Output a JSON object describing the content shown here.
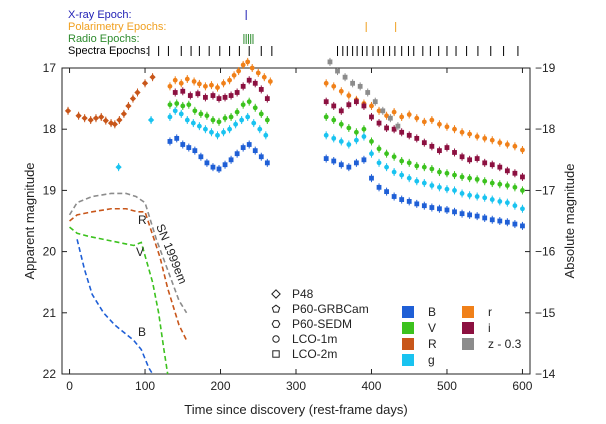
{
  "chart_data": {
    "type": "scatter",
    "xlabel": "Time since discovery (rest-frame days)",
    "ylabel": "Apparent magnitude",
    "ylabel_right": "Absolute magnitude",
    "xlim": [
      -10,
      610
    ],
    "ylim": [
      17.0,
      22.0
    ],
    "ylim_right": [
      -19.0,
      -14.0
    ],
    "x_ticks": [
      0,
      100,
      200,
      300,
      400,
      500,
      600
    ],
    "y_ticks": [
      17,
      18,
      19,
      20,
      21,
      22
    ],
    "y_ticks_right": [
      -19,
      -18,
      -17,
      -16,
      -15,
      -14
    ],
    "epochs": [
      {
        "label": "X-ray Epoch:",
        "color": "#1f1fb4",
        "days": [
          234
        ]
      },
      {
        "label": "Polarimetry Epochs:",
        "color": "#f0a020",
        "days": [
          393,
          432
        ]
      },
      {
        "label": "Radio Epochs:",
        "color": "#2e8b2e",
        "days": [
          231,
          234,
          237,
          240,
          243
        ]
      },
      {
        "label": "Spectra Epochs:",
        "color": "#000000",
        "days": [
          105,
          118,
          131,
          148,
          161,
          172,
          185,
          199,
          212,
          225,
          238,
          254,
          268,
          355,
          362,
          368,
          375,
          381,
          388,
          394,
          402,
          409,
          416,
          424,
          431,
          440,
          449,
          456,
          468,
          478,
          489,
          500,
          512,
          526,
          541,
          558,
          575,
          594
        ]
      }
    ],
    "telescope_legend": [
      {
        "label": "P48",
        "marker": "diamond"
      },
      {
        "label": "P60-GRBCam",
        "marker": "pentagon"
      },
      {
        "label": "P60-SEDM",
        "marker": "hexagon"
      },
      {
        "label": "LCO-1m",
        "marker": "circle"
      },
      {
        "label": "LCO-2m",
        "marker": "square"
      }
    ],
    "filter_legend": [
      {
        "label": "B",
        "color": "#1f5fd6"
      },
      {
        "label": "V",
        "color": "#3cc21e"
      },
      {
        "label": "R",
        "color": "#c8561a"
      },
      {
        "label": "g",
        "color": "#19c3f0"
      },
      {
        "label": "r",
        "color": "#f08019"
      },
      {
        "label": "i",
        "color": "#8c1040"
      },
      {
        "label": "z - 0.3",
        "color": "#8c8c8c"
      }
    ],
    "series": [
      {
        "name": "R",
        "color": "#c8561a",
        "marker": "diamond",
        "x": [
          -2,
          12,
          20,
          28,
          35,
          42,
          48,
          55,
          60,
          66,
          72,
          78,
          84,
          90,
          100,
          110
        ],
        "y": [
          17.7,
          17.78,
          17.82,
          17.85,
          17.82,
          17.8,
          17.86,
          17.9,
          17.92,
          17.85,
          17.75,
          17.62,
          17.5,
          17.4,
          17.25,
          17.15
        ]
      },
      {
        "name": "g",
        "color": "#19c3f0",
        "marker": "diamond",
        "x": [
          65,
          108
        ],
        "y": [
          18.62,
          17.85
        ]
      },
      {
        "name": "r",
        "color": "#f08019",
        "marker": "circle",
        "x": [
          133,
          140,
          148,
          156,
          165,
          172,
          180,
          188,
          196,
          204,
          212,
          218,
          224,
          230,
          236,
          242,
          250,
          258,
          266,
          340,
          350,
          360,
          370,
          380,
          390,
          400,
          410,
          420,
          430,
          440,
          450,
          460,
          470,
          480,
          490,
          500,
          510,
          520,
          530,
          540,
          550,
          560,
          570,
          580,
          590,
          600
        ],
        "y": [
          17.3,
          17.2,
          17.25,
          17.18,
          17.22,
          17.26,
          17.3,
          17.28,
          17.32,
          17.25,
          17.2,
          17.12,
          17.05,
          16.95,
          16.9,
          17.0,
          17.08,
          17.15,
          17.22,
          17.25,
          17.3,
          17.38,
          17.45,
          17.52,
          17.58,
          17.62,
          17.7,
          17.78,
          17.72,
          17.8,
          17.76,
          17.82,
          17.88,
          17.85,
          17.92,
          17.96,
          18.0,
          18.05,
          18.08,
          18.12,
          18.15,
          18.18,
          18.22,
          18.25,
          18.28,
          18.34
        ]
      },
      {
        "name": "i",
        "color": "#8c1040",
        "marker": "square",
        "x": [
          140,
          150,
          160,
          170,
          180,
          190,
          198,
          206,
          214,
          222,
          230,
          238,
          246,
          254,
          262,
          340,
          350,
          360,
          370,
          380,
          390,
          400,
          410,
          420,
          430,
          440,
          450,
          460,
          470,
          480,
          490,
          500,
          510,
          520,
          530,
          540,
          550,
          560,
          570,
          580,
          590,
          600
        ],
        "y": [
          17.4,
          17.38,
          17.45,
          17.42,
          17.48,
          17.45,
          17.5,
          17.48,
          17.45,
          17.4,
          17.3,
          17.2,
          17.25,
          17.35,
          17.5,
          17.55,
          17.62,
          17.7,
          17.6,
          17.55,
          17.62,
          17.8,
          17.9,
          17.98,
          18.0,
          18.05,
          18.1,
          18.15,
          18.22,
          18.28,
          18.35,
          18.3,
          18.38,
          18.45,
          18.5,
          18.48,
          18.55,
          18.58,
          18.62,
          18.68,
          18.72,
          18.78
        ]
      },
      {
        "name": "V",
        "color": "#3cc21e",
        "marker": "circle",
        "x": [
          133,
          142,
          150,
          158,
          166,
          174,
          182,
          190,
          198,
          206,
          214,
          222,
          230,
          238,
          246,
          254,
          262,
          340,
          350,
          360,
          370,
          380,
          390,
          400,
          410,
          420,
          430,
          440,
          450,
          460,
          470,
          480,
          490,
          500,
          510,
          520,
          530,
          540,
          550,
          560,
          570,
          580,
          590,
          600
        ],
        "y": [
          17.6,
          17.58,
          17.62,
          17.6,
          17.7,
          17.75,
          17.78,
          17.85,
          17.88,
          17.82,
          17.8,
          17.72,
          17.6,
          17.55,
          17.65,
          17.75,
          17.85,
          17.8,
          17.85,
          17.92,
          17.98,
          18.05,
          18.0,
          18.2,
          18.32,
          18.4,
          18.45,
          18.52,
          18.55,
          18.6,
          18.62,
          18.65,
          18.7,
          18.72,
          18.75,
          18.78,
          18.8,
          18.82,
          18.85,
          18.88,
          18.9,
          18.92,
          18.95,
          19.0
        ]
      },
      {
        "name": "g",
        "color": "#19c3f0",
        "marker": "circle",
        "x": [
          133,
          140,
          148,
          156,
          164,
          172,
          180,
          188,
          196,
          204,
          212,
          220,
          228,
          236,
          244,
          252,
          260,
          340,
          350,
          360,
          370,
          380,
          390,
          400,
          410,
          420,
          430,
          440,
          450,
          460,
          470,
          480,
          490,
          500,
          510,
          520,
          530,
          540,
          550,
          560,
          570,
          580,
          590,
          600
        ],
        "y": [
          17.8,
          17.7,
          17.75,
          17.85,
          17.9,
          17.95,
          18.0,
          18.05,
          18.1,
          18.05,
          18.0,
          17.92,
          17.85,
          17.8,
          17.9,
          18.0,
          18.1,
          18.1,
          18.15,
          18.2,
          18.25,
          18.18,
          18.12,
          18.4,
          18.55,
          18.62,
          18.7,
          18.75,
          18.8,
          18.85,
          18.88,
          18.92,
          18.95,
          18.98,
          19.0,
          19.05,
          19.08,
          19.1,
          19.12,
          19.15,
          19.18,
          19.2,
          19.25,
          19.3
        ]
      },
      {
        "name": "B",
        "color": "#1f5fd6",
        "marker": "square",
        "x": [
          133,
          142,
          150,
          158,
          166,
          174,
          182,
          190,
          198,
          206,
          214,
          222,
          230,
          238,
          246,
          254,
          262,
          340,
          350,
          360,
          370,
          380,
          390,
          400,
          410,
          420,
          430,
          440,
          450,
          460,
          470,
          480,
          490,
          500,
          510,
          520,
          530,
          540,
          550,
          560,
          570,
          580,
          590,
          600
        ],
        "y": [
          18.2,
          18.15,
          18.25,
          18.3,
          18.35,
          18.45,
          18.55,
          18.62,
          18.65,
          18.58,
          18.5,
          18.4,
          18.3,
          18.25,
          18.35,
          18.45,
          18.55,
          18.48,
          18.52,
          18.58,
          18.62,
          18.55,
          18.5,
          18.8,
          18.95,
          19.02,
          19.1,
          19.15,
          19.18,
          19.22,
          19.25,
          19.28,
          19.3,
          19.32,
          19.35,
          19.38,
          19.4,
          19.42,
          19.45,
          19.48,
          19.5,
          19.52,
          19.55,
          19.58
        ]
      },
      {
        "name": "z - 0.3",
        "color": "#8c8c8c",
        "marker": "square",
        "x": [
          345,
          355,
          365,
          375,
          385,
          395,
          405,
          415,
          425,
          435
        ],
        "y": [
          16.9,
          17.05,
          17.15,
          17.25,
          17.3,
          17.4,
          17.55,
          17.7,
          17.82,
          17.95
        ]
      }
    ],
    "sn1999em": {
      "label": "SN 1999em",
      "curves": [
        {
          "label": "B",
          "color": "#1f5fd6",
          "x": [
            10,
            20,
            30,
            45,
            60,
            75,
            85,
            95,
            105,
            110
          ],
          "y": [
            19.8,
            20.3,
            20.7,
            21.0,
            21.2,
            21.35,
            21.45,
            21.6,
            21.9,
            22.0
          ]
        },
        {
          "label": "V",
          "color": "#3cc21e",
          "x": [
            0,
            10,
            25,
            45,
            65,
            85,
            95,
            110,
            118,
            125,
            130
          ],
          "y": [
            19.6,
            19.7,
            19.75,
            19.8,
            19.85,
            19.9,
            19.85,
            20.5,
            21.0,
            21.6,
            22.0
          ]
        },
        {
          "label": "R",
          "color": "#c8561a",
          "x": [
            0,
            10,
            30,
            55,
            75,
            90,
            100,
            120,
            130,
            145,
            155
          ],
          "y": [
            19.5,
            19.4,
            19.35,
            19.3,
            19.3,
            19.35,
            19.35,
            20.1,
            20.6,
            21.2,
            21.45
          ]
        },
        {
          "label": "",
          "color": "#8c8c8c",
          "x": [
            0,
            10,
            30,
            55,
            75,
            88,
            100,
            115,
            130,
            145,
            155
          ],
          "y": [
            19.4,
            19.2,
            19.1,
            19.05,
            19.05,
            19.1,
            19.2,
            19.8,
            20.3,
            20.8,
            21.0
          ]
        }
      ]
    }
  }
}
